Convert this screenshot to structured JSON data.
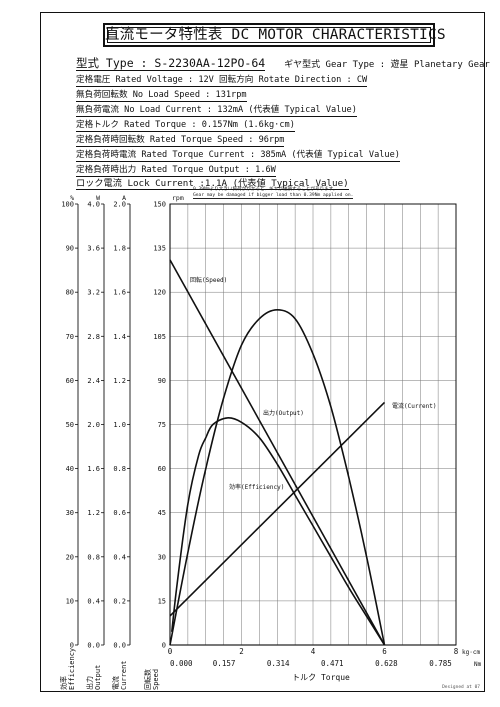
{
  "title": "直流モータ特性表 DC MOTOR CHARACTERISTICS",
  "type_label": "型式 Type ",
  "type_value": ": S-2230AA-12PO-64",
  "gear_type": "ギヤ型式 Gear Type : 遊星  Planetary Gear",
  "specs": [
    {
      "text": "定格電圧 Rated Voltage : 12V   回転方向 Rotate Direction : CW"
    },
    {
      "text": "無負荷回転数 No Load Speed : 131rpm"
    },
    {
      "text": "無負荷電流 No Load Current : 132mA (代表値 Typical Value)"
    },
    {
      "text": "定格トルク Rated Torque : 0.157Nm (1.6kg·cm)"
    },
    {
      "text": "定格負荷時回転数 Rated Torque Speed : 96rpm"
    },
    {
      "text": "定格負荷時電流 Rated Torque Current : 385mA (代表値 Typical Value)"
    },
    {
      "text": "定格負荷時出力 Rated Torque Output : 1.6W"
    },
    {
      "text": "ロック電流 Lock Current :1.1A (代表値 Typical Value)"
    }
  ],
  "annotation_jp": "0.39Nmより大きい負荷がかかると、ギヤが破損することがあります。",
  "annotation_en": "Gear may be damaged if bigger load than 0.39Nm applied on.",
  "footer_note": "Designed at 07",
  "chart_data": {
    "type": "line",
    "xlabel": "トルク Torque",
    "x_units": [
      "kg·cm",
      "Nm"
    ],
    "x_kgcm_ticks": [
      "0",
      "2",
      "4",
      "6",
      "8"
    ],
    "x_nm_ticks": [
      "0.000",
      "0.157",
      "0.314",
      "0.471",
      "0.628",
      "0.785"
    ],
    "xlim_kgcm": [
      0,
      8
    ],
    "axes": [
      {
        "key": "efficiency",
        "unit": "%",
        "label": "効率 Efficiency",
        "ticks": [
          "0",
          "10",
          "20",
          "30",
          "40",
          "50",
          "60",
          "70",
          "80",
          "90",
          "100"
        ],
        "ylim": [
          0,
          100
        ]
      },
      {
        "key": "output",
        "unit": "W",
        "label": "出力 Output",
        "ticks": [
          "0.0",
          "0.4",
          "0.8",
          "1.2",
          "1.6",
          "2.0",
          "2.4",
          "2.8",
          "3.2",
          "3.6",
          "4.0"
        ],
        "ylim": [
          0,
          4
        ]
      },
      {
        "key": "current",
        "unit": "A",
        "label": "電流 Current",
        "ticks": [
          "0.0",
          "0.2",
          "0.4",
          "0.6",
          "0.8",
          "1.0",
          "1.2",
          "1.4",
          "1.6",
          "1.8",
          "2.0"
        ],
        "ylim": [
          0,
          2
        ]
      },
      {
        "key": "speed",
        "unit": "rpm",
        "label": "回転数 Speed",
        "ticks": [
          "0",
          "15",
          "30",
          "45",
          "60",
          "75",
          "90",
          "105",
          "120",
          "135",
          "150"
        ],
        "ylim": [
          0,
          150
        ]
      }
    ],
    "series": [
      {
        "name": "回転(Speed)",
        "axis": "speed",
        "x": [
          0,
          6.0
        ],
        "y": [
          131,
          0
        ]
      },
      {
        "name": "電流(Current)",
        "axis": "current",
        "x": [
          0,
          6.0
        ],
        "y": [
          0.132,
          1.1
        ]
      },
      {
        "name": "出力(Output)",
        "axis": "output",
        "x": [
          0,
          0.5,
          1.0,
          1.5,
          2.0,
          2.5,
          3.0,
          3.5,
          4.0,
          4.5,
          5.0,
          5.5,
          6.0
        ],
        "y": [
          0,
          0.84,
          1.6,
          2.24,
          2.72,
          2.96,
          3.04,
          2.96,
          2.64,
          2.16,
          1.52,
          0.8,
          0
        ]
      },
      {
        "name": "効率(Efficiency)",
        "axis": "efficiency",
        "x": [
          0.05,
          0.2,
          0.5,
          0.8,
          1.0,
          1.2,
          1.6,
          2.0,
          2.5,
          3.0,
          3.5,
          4.0,
          4.5,
          5.0,
          5.5,
          6.0
        ],
        "y": [
          3,
          14,
          32,
          43,
          47,
          50,
          51.5,
          50.5,
          47,
          41,
          34,
          27,
          20,
          13,
          6.5,
          0
        ]
      }
    ]
  }
}
